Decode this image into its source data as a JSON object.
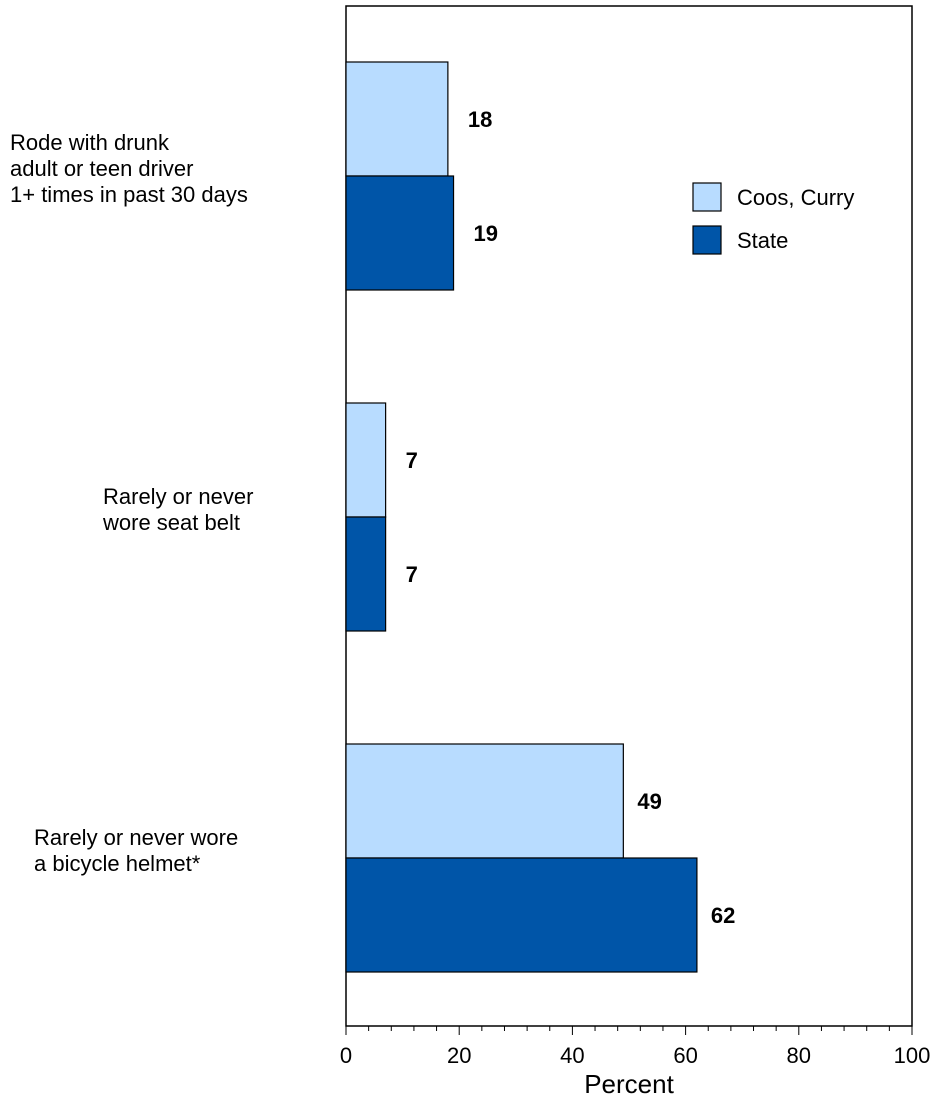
{
  "chart_data": {
    "type": "bar",
    "orientation": "horizontal",
    "categories": [
      [
        "Rode with drunk",
        "adult or teen driver",
        "1+ times in past 30 days"
      ],
      [
        "Rarely or never",
        "wore seat belt"
      ],
      [
        "Rarely or never wore",
        "a bicycle helmet*"
      ]
    ],
    "series": [
      {
        "name": "Coos, Curry",
        "color": "#b8dcff",
        "values": [
          18,
          7,
          49
        ]
      },
      {
        "name": "State",
        "color": "#0055a8",
        "values": [
          19,
          7,
          62
        ]
      }
    ],
    "xlabel": "Percent",
    "xlim": [
      0,
      100
    ],
    "xticks": [
      0,
      20,
      40,
      60,
      80,
      100
    ],
    "legend_position": "top-right",
    "grid": false
  }
}
